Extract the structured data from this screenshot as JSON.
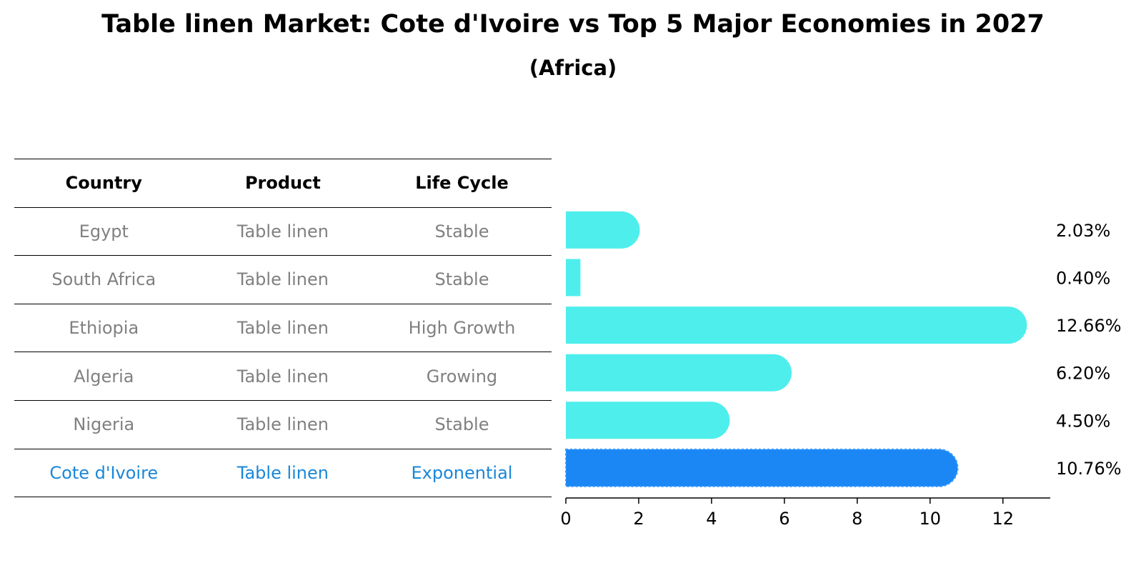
{
  "chart_data": {
    "type": "bar",
    "orientation": "horizontal",
    "title": "Table linen Market: Cote d'Ivoire vs Top 5 Major Economies in 2027",
    "subtitle": "(Africa)",
    "table": {
      "headers": [
        "Country",
        "Product",
        "Life Cycle"
      ],
      "rows": [
        {
          "country": "Egypt",
          "product": "Table linen",
          "life_cycle": "Stable"
        },
        {
          "country": "South Africa",
          "product": "Table linen",
          "life_cycle": "Stable"
        },
        {
          "country": "Ethiopia",
          "product": "Table linen",
          "life_cycle": "High Growth"
        },
        {
          "country": "Algeria",
          "product": "Table linen",
          "life_cycle": "Growing"
        },
        {
          "country": "Nigeria",
          "product": "Table linen",
          "life_cycle": "Stable"
        },
        {
          "country": "Cote d'Ivoire",
          "product": "Table linen",
          "life_cycle": "Exponential"
        }
      ],
      "highlight_index": 5
    },
    "categories": [
      "Egypt",
      "South Africa",
      "Ethiopia",
      "Algeria",
      "Nigeria",
      "Cote d'Ivoire"
    ],
    "values": [
      2.03,
      0.4,
      12.66,
      6.2,
      4.5,
      10.76
    ],
    "labels": [
      "2.03%",
      "0.40%",
      "12.66%",
      "6.20%",
      "4.50%",
      "10.76%"
    ],
    "xticks": [
      0,
      2,
      4,
      6,
      8,
      10,
      12
    ],
    "xlim": [
      0,
      13.3
    ],
    "colors": {
      "bar": "#4eeeec",
      "highlight": "#1a87f5",
      "highlight_text": "#1a87d9",
      "muted_text": "#808080"
    }
  }
}
